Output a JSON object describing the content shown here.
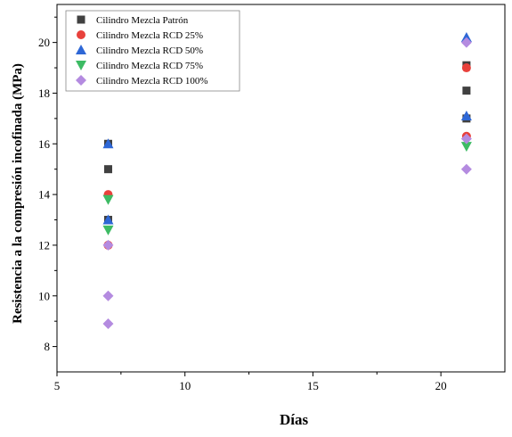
{
  "chart_data": {
    "type": "scatter",
    "title": "",
    "xlabel": "Días",
    "ylabel": "Resistencia a la compresión incofinada (MPa)",
    "xlim": [
      5,
      22.5
    ],
    "ylim": [
      7,
      21.5
    ],
    "xticks": [
      5,
      10,
      15,
      20
    ],
    "yticks": [
      8,
      10,
      12,
      14,
      16,
      18,
      20
    ],
    "grid": false,
    "legend_position": "top-left",
    "series": [
      {
        "name": "Cilindro Mezcla Patrón",
        "marker": "square",
        "color": "#404040",
        "points": [
          [
            7,
            16
          ],
          [
            7,
            15
          ],
          [
            7,
            13
          ],
          [
            21,
            19.1
          ],
          [
            21,
            18.1
          ],
          [
            21,
            17
          ]
        ]
      },
      {
        "name": "Cilindro Mezcla RCD 25%",
        "marker": "circle",
        "color": "#e8413c",
        "points": [
          [
            7,
            14
          ],
          [
            7,
            12
          ],
          [
            21,
            19
          ],
          [
            21,
            16.3
          ]
        ]
      },
      {
        "name": "Cilindro Mezcla RCD 50%",
        "marker": "triangle-up",
        "color": "#2e67d6",
        "points": [
          [
            7,
            16
          ],
          [
            7,
            13
          ],
          [
            21,
            20.2
          ],
          [
            21,
            17.1
          ]
        ]
      },
      {
        "name": "Cilindro Mezcla RCD 75%",
        "marker": "triangle-down",
        "color": "#3dbb64",
        "points": [
          [
            7,
            13.8
          ],
          [
            7,
            12.6
          ],
          [
            21,
            15.9
          ]
        ]
      },
      {
        "name": "Cilindro Mezcla RCD 100%",
        "marker": "diamond",
        "color": "#b48be0",
        "points": [
          [
            7,
            12
          ],
          [
            7,
            10
          ],
          [
            7,
            8.9
          ],
          [
            21,
            20
          ],
          [
            21,
            16.2
          ],
          [
            21,
            15
          ]
        ]
      }
    ]
  }
}
